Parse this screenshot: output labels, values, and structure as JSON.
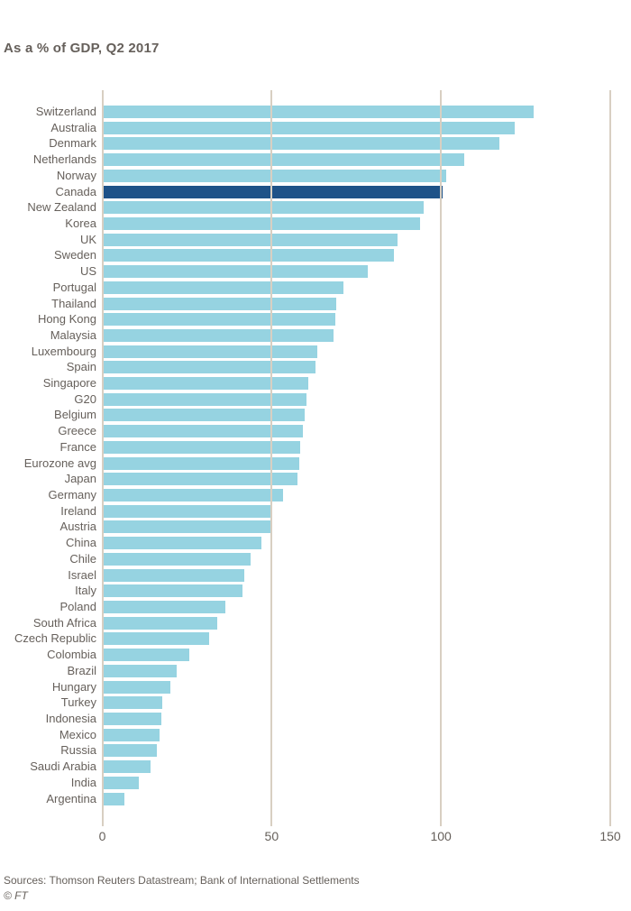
{
  "subtitle": "As a % of GDP, Q2 2017",
  "chart_data": {
    "type": "bar",
    "orientation": "horizontal",
    "subtitle": "As a % of GDP, Q2 2017",
    "categories": [
      "Switzerland",
      "Australia",
      "Denmark",
      "Netherlands",
      "Norway",
      "Canada",
      "New Zealand",
      "Korea",
      "UK",
      "Sweden",
      "US",
      "Portugal",
      "Thailand",
      "Hong Kong",
      "Malaysia",
      "Luxembourg",
      "Spain",
      "Singapore",
      "G20",
      "Belgium",
      "Greece",
      "France",
      "Eurozone avg",
      "Japan",
      "Germany",
      "Ireland",
      "Austria",
      "China",
      "Chile",
      "Israel",
      "Italy",
      "Poland",
      "South Africa",
      "Czech Republic",
      "Colombia",
      "Brazil",
      "Hungary",
      "Turkey",
      "Indonesia",
      "Mexico",
      "Russia",
      "Saudi Arabia",
      "India",
      "Argentina"
    ],
    "values": [
      127.5,
      121.9,
      117.3,
      106.8,
      101.5,
      100.5,
      94.8,
      93.9,
      87.1,
      86.0,
      78.5,
      71.1,
      69.2,
      68.7,
      68.2,
      63.4,
      62.9,
      60.8,
      60.4,
      59.8,
      59.2,
      58.3,
      58.1,
      57.6,
      53.4,
      50.0,
      49.7,
      46.9,
      43.8,
      41.8,
      41.3,
      36.3,
      34.0,
      31.6,
      25.6,
      21.9,
      20.0,
      17.8,
      17.5,
      16.9,
      16.0,
      14.3,
      10.9,
      6.4
    ],
    "highlight_category": "Canada",
    "xlabel": "",
    "ylabel": "",
    "xlim": [
      0,
      150
    ],
    "x_ticks": [
      "0",
      "50",
      "100",
      "150"
    ],
    "x_tick_values": [
      0,
      50,
      100,
      150
    ],
    "grid": true,
    "legend": false
  },
  "colors": {
    "background": "#ffffff",
    "bar": "#96d3e1",
    "highlight": "#1e5288",
    "gridline": "#d8cfc2",
    "text": "#66605b"
  },
  "footer": {
    "sources": "Sources: Thomson Reuters Datastream; Bank of International Settlements",
    "copyright": "© FT"
  }
}
